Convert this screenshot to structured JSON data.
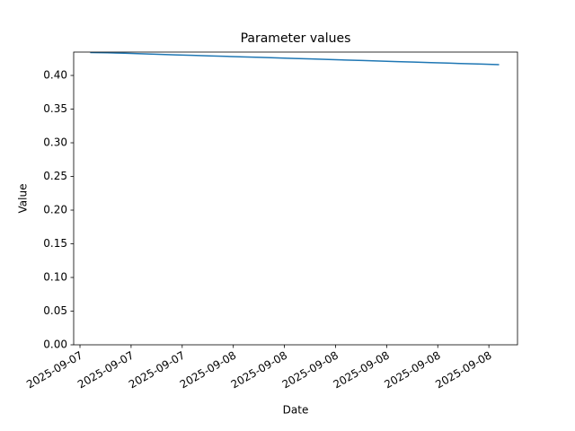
{
  "chart_data": {
    "type": "line",
    "title": "Parameter values",
    "x_label": "Date",
    "y_label": "Value",
    "x": [
      15.6,
      16.6,
      17.6,
      18.6,
      19.6,
      20.6,
      21.6,
      22.6,
      23.6,
      24.6,
      25.6,
      26.6,
      27.6,
      28.6,
      29.6,
      30.6,
      31.6,
      32.6,
      33.6,
      34.6,
      35.6,
      36.6,
      37.6,
      38.6,
      39.6
    ],
    "series": [
      {
        "color": "#1f77b4",
        "values": [
          0.434,
          0.4337,
          0.433,
          0.4322,
          0.4314,
          0.4306,
          0.4299,
          0.4291,
          0.4283,
          0.4276,
          0.4268,
          0.426,
          0.4252,
          0.4245,
          0.4237,
          0.4229,
          0.4222,
          0.4214,
          0.4206,
          0.4198,
          0.4191,
          0.4183,
          0.4175,
          0.4168,
          0.416
        ]
      }
    ],
    "xlim": [
      14.63,
      40.68
    ],
    "xticks": [
      {
        "value": 15,
        "label": "2025-09-07"
      },
      {
        "value": 18,
        "label": "2025-09-07"
      },
      {
        "value": 21,
        "label": "2025-09-07"
      },
      {
        "value": 24,
        "label": "2025-09-08"
      },
      {
        "value": 27,
        "label": "2025-09-08"
      },
      {
        "value": 30,
        "label": "2025-09-08"
      },
      {
        "value": 33,
        "label": "2025-09-08"
      },
      {
        "value": 36,
        "label": "2025-09-08"
      },
      {
        "value": 39,
        "label": "2025-09-08"
      }
    ],
    "ylim": [
      0,
      0.4347
    ],
    "yticks": [
      {
        "value": 0,
        "label": "0.00"
      },
      {
        "value": 0.05,
        "label": "0.05"
      },
      {
        "value": 0.1,
        "label": "0.10"
      },
      {
        "value": 0.15,
        "label": "0.15"
      },
      {
        "value": 0.2,
        "label": "0.20"
      },
      {
        "value": 0.25,
        "label": "0.25"
      },
      {
        "value": 0.3,
        "label": "0.30"
      },
      {
        "value": 0.35,
        "label": "0.35"
      },
      {
        "value": 0.4,
        "label": "0.40"
      }
    ]
  }
}
